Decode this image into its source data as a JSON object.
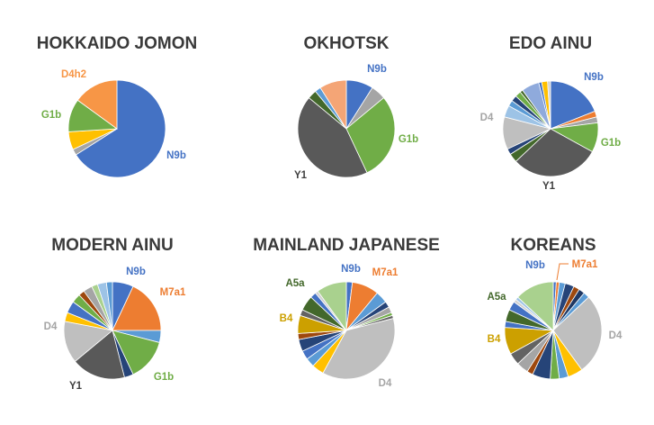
{
  "palette": {
    "blue": "#4472C4",
    "orange": "#ED7D31",
    "gray": "#A5A5A5",
    "yellow": "#FFC000",
    "lightblue": "#5B9BD5",
    "green": "#70AD47",
    "darkblue": "#264478",
    "brown": "#9E480E",
    "darkgray": "#636363",
    "olive": "#997300",
    "navy": "#1F3864",
    "darkgreen": "#43682B",
    "periwinkle": "#698ED0",
    "salmon": "#F4A576",
    "silver": "#BFBFBF",
    "gold": "#CCA000",
    "darkorange": "#C55A11",
    "lime": "#A9D18E",
    "ltblue2": "#9DC3E6",
    "ltgray": "#D0D0D0"
  },
  "chart_data": [
    {
      "type": "pie",
      "title": "HOKKAIDO JOMON",
      "slices": [
        {
          "value": 66,
          "color": "#4472C4",
          "label": "N9b"
        },
        {
          "value": 2,
          "color": "#A5A5A5"
        },
        {
          "value": 6,
          "color": "#FFC000"
        },
        {
          "value": 11,
          "color": "#70AD47",
          "label": "G1b"
        },
        {
          "value": 15,
          "color": "#F79646",
          "label": "D4h2"
        }
      ],
      "labels": [
        {
          "text": "N9b",
          "color": "#4472C4"
        },
        {
          "text": "G1b",
          "color": "#70AD47"
        },
        {
          "text": "D4h2",
          "color": "#F79646"
        }
      ]
    },
    {
      "type": "pie",
      "title": "OKHOTSK",
      "slices": [
        {
          "value": 9,
          "color": "#4472C4",
          "label": "N9b"
        },
        {
          "value": 5,
          "color": "#A5A5A5"
        },
        {
          "value": 29,
          "color": "#70AD47",
          "label": "G1b"
        },
        {
          "value": 43,
          "color": "#595959",
          "label": "Y1"
        },
        {
          "value": 3,
          "color": "#43682B"
        },
        {
          "value": 2,
          "color": "#5B9BD5"
        },
        {
          "value": 9,
          "color": "#F4A576"
        }
      ],
      "labels": [
        {
          "text": "N9b",
          "color": "#4472C4"
        },
        {
          "text": "G1b",
          "color": "#70AD47"
        },
        {
          "text": "Y1",
          "color": "#404040"
        }
      ]
    },
    {
      "type": "pie",
      "title": "EDO AINU",
      "slices": [
        {
          "value": 19,
          "color": "#4472C4",
          "label": "N9b"
        },
        {
          "value": 2,
          "color": "#ED7D31"
        },
        {
          "value": 2,
          "color": "#A5A5A5"
        },
        {
          "value": 10,
          "color": "#70AD47",
          "label": "G1b"
        },
        {
          "value": 30,
          "color": "#595959",
          "label": "Y1"
        },
        {
          "value": 3,
          "color": "#43682B"
        },
        {
          "value": 2,
          "color": "#264478"
        },
        {
          "value": 11,
          "color": "#BFBFBF",
          "label": "D4"
        },
        {
          "value": 4,
          "color": "#9DC3E6"
        },
        {
          "value": 2,
          "color": "#5B9BD5"
        },
        {
          "value": 2,
          "color": "#264478"
        },
        {
          "value": 2,
          "color": "#70AD47"
        },
        {
          "value": 1,
          "color": "#43682B"
        },
        {
          "value": 6,
          "color": "#8FAADC"
        },
        {
          "value": 1,
          "color": "#4472C4"
        },
        {
          "value": 2,
          "color": "#FFC000"
        },
        {
          "value": 1,
          "color": "#D0D0D0"
        }
      ],
      "labels": [
        {
          "text": "N9b",
          "color": "#4472C4"
        },
        {
          "text": "G1b",
          "color": "#70AD47"
        },
        {
          "text": "Y1",
          "color": "#404040"
        },
        {
          "text": "D4",
          "color": "#A5A5A5"
        }
      ]
    },
    {
      "type": "pie",
      "title": "MODERN AINU",
      "slices": [
        {
          "value": 7,
          "color": "#4472C4",
          "label": "N9b"
        },
        {
          "value": 18,
          "color": "#ED7D31",
          "label": "M7a1"
        },
        {
          "value": 4,
          "color": "#5B9BD5"
        },
        {
          "value": 14,
          "color": "#70AD47",
          "label": "G1b"
        },
        {
          "value": 3,
          "color": "#264478"
        },
        {
          "value": 18,
          "color": "#595959",
          "label": "Y1"
        },
        {
          "value": 14,
          "color": "#BFBFBF",
          "label": "D4"
        },
        {
          "value": 3,
          "color": "#FFC000"
        },
        {
          "value": 4,
          "color": "#4472C4"
        },
        {
          "value": 3,
          "color": "#70AD47"
        },
        {
          "value": 2,
          "color": "#9E480E"
        },
        {
          "value": 3,
          "color": "#A5A5A5"
        },
        {
          "value": 2,
          "color": "#A9D18E"
        },
        {
          "value": 3,
          "color": "#9DC3E6"
        },
        {
          "value": 2,
          "color": "#5B9BD5"
        }
      ],
      "labels": [
        {
          "text": "N9b",
          "color": "#4472C4"
        },
        {
          "text": "M7a1",
          "color": "#ED7D31"
        },
        {
          "text": "G1b",
          "color": "#70AD47"
        },
        {
          "text": "Y1",
          "color": "#404040"
        },
        {
          "text": "D4",
          "color": "#A5A5A5"
        }
      ]
    },
    {
      "type": "pie",
      "title": "MAINLAND JAPANESE",
      "slices": [
        {
          "value": 2,
          "color": "#4472C4",
          "label": "N9b"
        },
        {
          "value": 9,
          "color": "#ED7D31",
          "label": "M7a1"
        },
        {
          "value": 4,
          "color": "#5B9BD5"
        },
        {
          "value": 2,
          "color": "#264478"
        },
        {
          "value": 2,
          "color": "#A5A5A5"
        },
        {
          "value": 1,
          "color": "#70AD47"
        },
        {
          "value": 1,
          "color": "#636363"
        },
        {
          "value": 37,
          "color": "#BFBFBF",
          "label": "D4"
        },
        {
          "value": 4,
          "color": "#FFC000"
        },
        {
          "value": 3,
          "color": "#5B9BD5"
        },
        {
          "value": 3,
          "color": "#4472C4"
        },
        {
          "value": 4,
          "color": "#264478"
        },
        {
          "value": 2,
          "color": "#9E480E"
        },
        {
          "value": 6,
          "color": "#CCA000",
          "label": "B4"
        },
        {
          "value": 2,
          "color": "#636363"
        },
        {
          "value": 5,
          "color": "#43682B",
          "label": "A5a"
        },
        {
          "value": 2,
          "color": "#4472C4"
        },
        {
          "value": 1,
          "color": "#D0D0D0"
        },
        {
          "value": 10,
          "color": "#A9D18E"
        }
      ],
      "labels": [
        {
          "text": "N9b",
          "color": "#4472C4"
        },
        {
          "text": "M7a1",
          "color": "#ED7D31"
        },
        {
          "text": "D4",
          "color": "#A5A5A5"
        },
        {
          "text": "B4",
          "color": "#CCA000"
        },
        {
          "text": "A5a",
          "color": "#43682B"
        }
      ]
    },
    {
      "type": "pie",
      "title": "KOREANS",
      "slices": [
        {
          "value": 1,
          "color": "#4472C4",
          "label": "N9b"
        },
        {
          "value": 1,
          "color": "#ED7D31",
          "label": "M7a1"
        },
        {
          "value": 2,
          "color": "#5B9BD5"
        },
        {
          "value": 3,
          "color": "#264478"
        },
        {
          "value": 2,
          "color": "#9E480E"
        },
        {
          "value": 2,
          "color": "#1F3864"
        },
        {
          "value": 2,
          "color": "#5B9BD5"
        },
        {
          "value": 27,
          "color": "#BFBFBF",
          "label": "D4"
        },
        {
          "value": 5,
          "color": "#FFC000"
        },
        {
          "value": 3,
          "color": "#5B9BD5"
        },
        {
          "value": 3,
          "color": "#70AD47"
        },
        {
          "value": 6,
          "color": "#264478"
        },
        {
          "value": 2,
          "color": "#9E480E"
        },
        {
          "value": 4,
          "color": "#A5A5A5"
        },
        {
          "value": 4,
          "color": "#636363"
        },
        {
          "value": 9,
          "color": "#CCA000",
          "label": "B4"
        },
        {
          "value": 2,
          "color": "#4472C4"
        },
        {
          "value": 4,
          "color": "#43682B",
          "label": "A5a"
        },
        {
          "value": 3,
          "color": "#4472C4"
        },
        {
          "value": 1,
          "color": "#D0D0D0"
        },
        {
          "value": 1,
          "color": "#9DC3E6"
        },
        {
          "value": 13,
          "color": "#A9D18E"
        }
      ],
      "labels": [
        {
          "text": "N9b",
          "color": "#4472C4"
        },
        {
          "text": "M7a1",
          "color": "#ED7D31"
        },
        {
          "text": "D4",
          "color": "#A5A5A5"
        },
        {
          "text": "B4",
          "color": "#CCA000"
        },
        {
          "text": "A5a",
          "color": "#43682B"
        }
      ]
    }
  ]
}
